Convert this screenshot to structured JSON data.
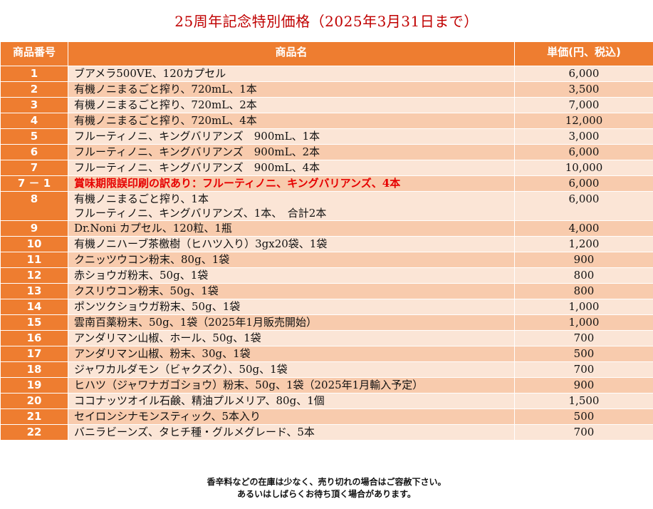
{
  "title": "25周年記念特別価格（2025年3月31日まで）",
  "headers": {
    "number": "商品番号",
    "name": "商品名",
    "price": "単価(円、税込)"
  },
  "rows": [
    {
      "no": "1",
      "name": "ブアメラ500VE、120カプセル",
      "price": "6,000"
    },
    {
      "no": "2",
      "name": "有機ノニまるごと搾り、720mL、1本",
      "price": "3,500"
    },
    {
      "no": "3",
      "name": "有機ノニまるごと搾り、720mL、2本",
      "price": "7,000"
    },
    {
      "no": "4",
      "name": "有機ノニまるごと搾り、720mL、4本",
      "price": "12,000"
    },
    {
      "no": "5",
      "name": "フルーティノニ、キングバリアンズ　900mL、1本",
      "price": "3,000"
    },
    {
      "no": "6",
      "name": "フルーティノニ、キングバリアンズ　900mL、2本",
      "price": "6,000"
    },
    {
      "no": "7",
      "name": "フルーティノニ、キングバリアンズ　900mL、4本",
      "price": "10,000"
    },
    {
      "no": "7 － 1",
      "name": "賞味期限誤印刷の訳あり：フルーティノニ、キングバリアンズ、4本",
      "price": "6,000",
      "highlight": true
    },
    {
      "no": "8",
      "name": "有機ノニまるごと搾り、1本",
      "name2": "フルーティノニ、キングバリアンズ、1本、　合計2本",
      "price": "6,000"
    },
    {
      "no": "9",
      "name": "Dr.Noni カプセル、120粒、1瓶",
      "price": "4,000"
    },
    {
      "no": "10",
      "name": "有機ノニハーブ茶檄樹（ヒハツ入り）3gx20袋、1袋",
      "price": "1,200"
    },
    {
      "no": "11",
      "name": "クニッツウコン粉末、80g、1袋",
      "price": "900"
    },
    {
      "no": "12",
      "name": "赤ショウガ粉末、50g、1袋",
      "price": "800"
    },
    {
      "no": "13",
      "name": "クスリウコン粉末、50g、1袋",
      "price": "800"
    },
    {
      "no": "14",
      "name": "ポンツクショウガ粉末、50g、1袋",
      "price": "1,000"
    },
    {
      "no": "15",
      "name": "雲南百薬粉末、50g、1袋（2025年1月販売開始）",
      "price": "1,000"
    },
    {
      "no": "16",
      "name": "アンダリマン山椒、ホール、50g、1袋",
      "price": "700"
    },
    {
      "no": "17",
      "name": "アンダリマン山椒、粉末、30g、1袋",
      "price": "500"
    },
    {
      "no": "18",
      "name": "ジャワカルダモン（ビャクズク）、50g、1袋",
      "price": "700"
    },
    {
      "no": "19",
      "name": "ヒハツ（ジャワナガゴショウ）粉末、50g、1袋（2025年1月輸入予定）",
      "price": "900"
    },
    {
      "no": "20",
      "name": "ココナッツオイル石鹸、精油プルメリア、80g、1個",
      "price": "1,500"
    },
    {
      "no": "21",
      "name": "セイロンシナモンスティック、5本入り",
      "price": "500"
    },
    {
      "no": "22",
      "name": "バニラビーンズ、タヒチ種・グルメグレード、5本",
      "price": "700"
    }
  ],
  "footer": {
    "line1": "香辛料などの在庫は少なく、売り切れの場合はご容赦下さい。",
    "line2": "あるいはしばらくお待ち頂く場合があります。"
  }
}
